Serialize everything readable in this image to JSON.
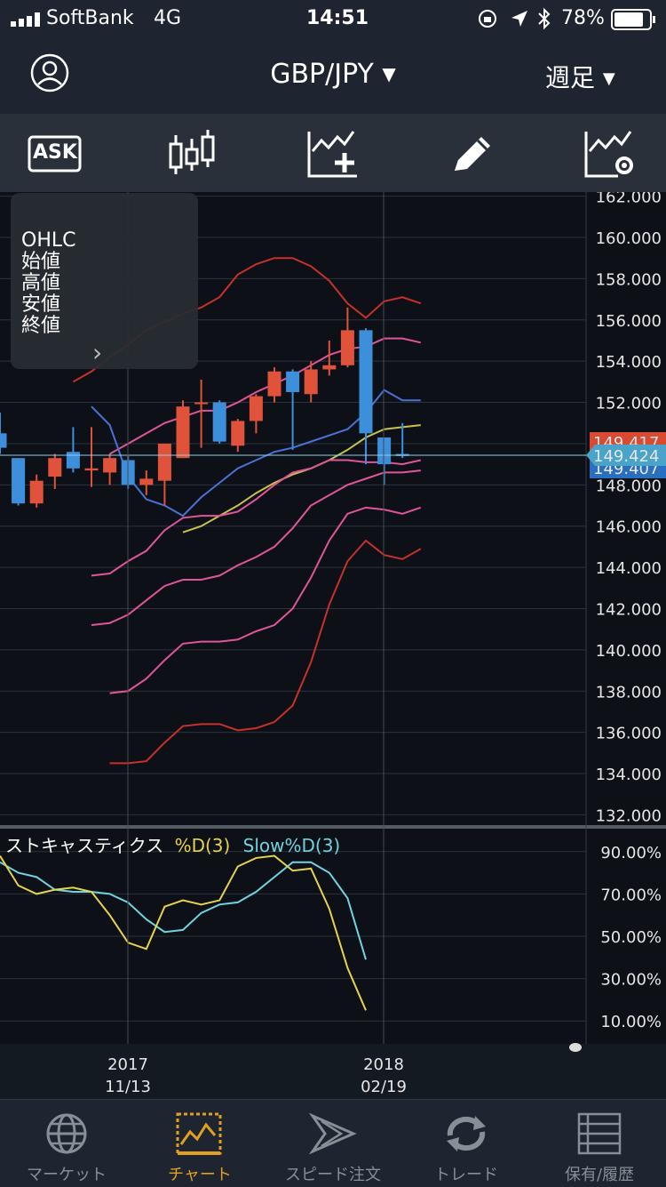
{
  "status": {
    "carrier": "SoftBank",
    "network": "4G",
    "time": "14:51",
    "battery": "78%"
  },
  "header": {
    "pair": "GBP/JPY",
    "period": "週足"
  },
  "toolbar": {
    "ask_label": "ASK"
  },
  "ohlc": {
    "title": "OHLC",
    "open": "始値",
    "high": "高値",
    "low": "安値",
    "close": "終値",
    "chevron": "›"
  },
  "main_chart": {
    "y_ticks": [
      "162.000",
      "160.000",
      "158.000",
      "156.000",
      "154.000",
      "152.000",
      "150.000",
      "148.000",
      "146.000",
      "144.000",
      "142.000",
      "140.000",
      "138.000",
      "136.000",
      "134.000",
      "132.000"
    ],
    "price_top_label": "149.417",
    "price_bottom_label": "149.407",
    "current_price": "149.424",
    "colors": {
      "up": "#e0533a",
      "down": "#3d8fdb",
      "bg": "#0d1117"
    }
  },
  "stochastic": {
    "title": "ストキャスティクス",
    "d_label": "%D(3)",
    "slow_label": "Slow%D(3)",
    "y_ticks": [
      "90.00%",
      "70.00%",
      "50.00%",
      "30.00%",
      "10.00%"
    ],
    "d_color": "#e6d34a",
    "slow_color": "#6fd3e0"
  },
  "x_axis": {
    "labels": [
      {
        "year": "2017",
        "date": "11/13"
      },
      {
        "year": "2018",
        "date": "02/19"
      }
    ]
  },
  "chart_data": {
    "type": "candlestick",
    "title": "GBP/JPY 週足",
    "ylim": [
      131.5,
      162.2
    ],
    "candles": [
      {
        "o": 150.5,
        "h": 151.5,
        "l": 149.5,
        "c": 149.8
      },
      {
        "o": 149.3,
        "h": 149.3,
        "l": 147.0,
        "c": 147.1
      },
      {
        "o": 147.1,
        "h": 148.5,
        "l": 146.9,
        "c": 148.2
      },
      {
        "o": 148.4,
        "h": 149.5,
        "l": 147.8,
        "c": 149.3
      },
      {
        "o": 149.6,
        "h": 150.8,
        "l": 148.6,
        "c": 148.8
      },
      {
        "o": 148.7,
        "h": 150.8,
        "l": 147.9,
        "c": 148.8
      },
      {
        "o": 148.6,
        "h": 149.5,
        "l": 148.0,
        "c": 149.3
      },
      {
        "o": 149.2,
        "h": 149.4,
        "l": 147.8,
        "c": 148.0
      },
      {
        "o": 148.0,
        "h": 148.7,
        "l": 147.5,
        "c": 148.3
      },
      {
        "o": 148.2,
        "h": 150.0,
        "l": 147.0,
        "c": 150.0
      },
      {
        "o": 149.3,
        "h": 152.1,
        "l": 149.3,
        "c": 151.8
      },
      {
        "o": 152.0,
        "h": 153.1,
        "l": 149.8,
        "c": 152.0
      },
      {
        "o": 152.0,
        "h": 152.1,
        "l": 150.0,
        "c": 150.1
      },
      {
        "o": 149.9,
        "h": 151.2,
        "l": 149.6,
        "c": 151.1
      },
      {
        "o": 151.1,
        "h": 152.4,
        "l": 150.5,
        "c": 152.3
      },
      {
        "o": 152.3,
        "h": 153.7,
        "l": 152.0,
        "c": 153.5
      },
      {
        "o": 153.5,
        "h": 153.6,
        "l": 149.7,
        "c": 152.5
      },
      {
        "o": 152.4,
        "h": 154.0,
        "l": 152.0,
        "c": 153.6
      },
      {
        "o": 153.6,
        "h": 155.0,
        "l": 153.3,
        "c": 153.8
      },
      {
        "o": 153.8,
        "h": 156.6,
        "l": 153.7,
        "c": 155.5
      },
      {
        "o": 155.5,
        "h": 155.6,
        "l": 149.0,
        "c": 150.5
      },
      {
        "o": 150.3,
        "h": 150.3,
        "l": 148.0,
        "c": 149.0
      },
      {
        "o": 149.5,
        "h": 151.0,
        "l": 149.3,
        "c": 149.4
      }
    ],
    "ma_blue": [
      151.8,
      150.9,
      148.4,
      147.3,
      147.0,
      146.5,
      147.4,
      148.1,
      148.8,
      149.2,
      149.6,
      149.8,
      150.1,
      150.4,
      150.7,
      151.5,
      152.6,
      152.1,
      152.1
    ],
    "ma_yellow": [
      145.7,
      146.0,
      146.5,
      147.0,
      147.6,
      148.1,
      148.5,
      148.8,
      149.2,
      149.7,
      150.3,
      150.7,
      150.8,
      150.9
    ],
    "bb_upper1": [
      149.5,
      150.0,
      150.5,
      151.0,
      151.3,
      151.6,
      151.6,
      152.0,
      152.5,
      152.9,
      153.3,
      153.8,
      154.3,
      154.6,
      154.7,
      155.1,
      155.1,
      154.9
    ],
    "bb_upper2": [
      153.0,
      153.5,
      154.2,
      154.8,
      155.5,
      155.9,
      156.3,
      156.6,
      157.1,
      158.2,
      158.7,
      159.0,
      159.0,
      158.6,
      157.9,
      156.8,
      156.1,
      156.9,
      157.1,
      156.8
    ],
    "bb_lower1": [
      143.6,
      143.7,
      144.3,
      144.8,
      145.8,
      146.4,
      146.5,
      146.5,
      146.7,
      147.3,
      148.0,
      148.6,
      148.8,
      149.2,
      149.2,
      149.1,
      149.1,
      149.0,
      149.2
    ],
    "bb_lower2": [
      141.2,
      141.3,
      141.7,
      142.4,
      143.1,
      143.4,
      143.4,
      143.6,
      144.1,
      144.5,
      145.0,
      145.9,
      147.0,
      147.5,
      148.0,
      148.3,
      148.6,
      148.6,
      148.7
    ],
    "bb_lower3": [
      137.9,
      138.0,
      138.6,
      139.5,
      140.3,
      140.4,
      140.4,
      140.5,
      140.9,
      141.2,
      142.0,
      143.5,
      145.3,
      146.6,
      146.9,
      146.8,
      146.6,
      146.9
    ],
    "bb_lower4": [
      134.5,
      134.5,
      134.6,
      135.5,
      136.3,
      136.4,
      136.4,
      136.1,
      136.2,
      136.5,
      137.3,
      139.4,
      142.2,
      144.3,
      145.3,
      144.6,
      144.4,
      144.9
    ],
    "stoch_ylim": [
      0,
      100
    ],
    "stoch_d": [
      88,
      74,
      70,
      72,
      73,
      71,
      60,
      47,
      44,
      64,
      67,
      65,
      67,
      83,
      87,
      88,
      81,
      82,
      63,
      35,
      15
    ],
    "stoch_slow": [
      85,
      80,
      78,
      72,
      71,
      71,
      70,
      66,
      58,
      52,
      53,
      61,
      65,
      66,
      71,
      78,
      85,
      85,
      80,
      68,
      39
    ]
  },
  "tabs": [
    {
      "label": "マーケット"
    },
    {
      "label": "チャート"
    },
    {
      "label": "スピード注文"
    },
    {
      "label": "トレード"
    },
    {
      "label": "保有/履歴"
    }
  ]
}
